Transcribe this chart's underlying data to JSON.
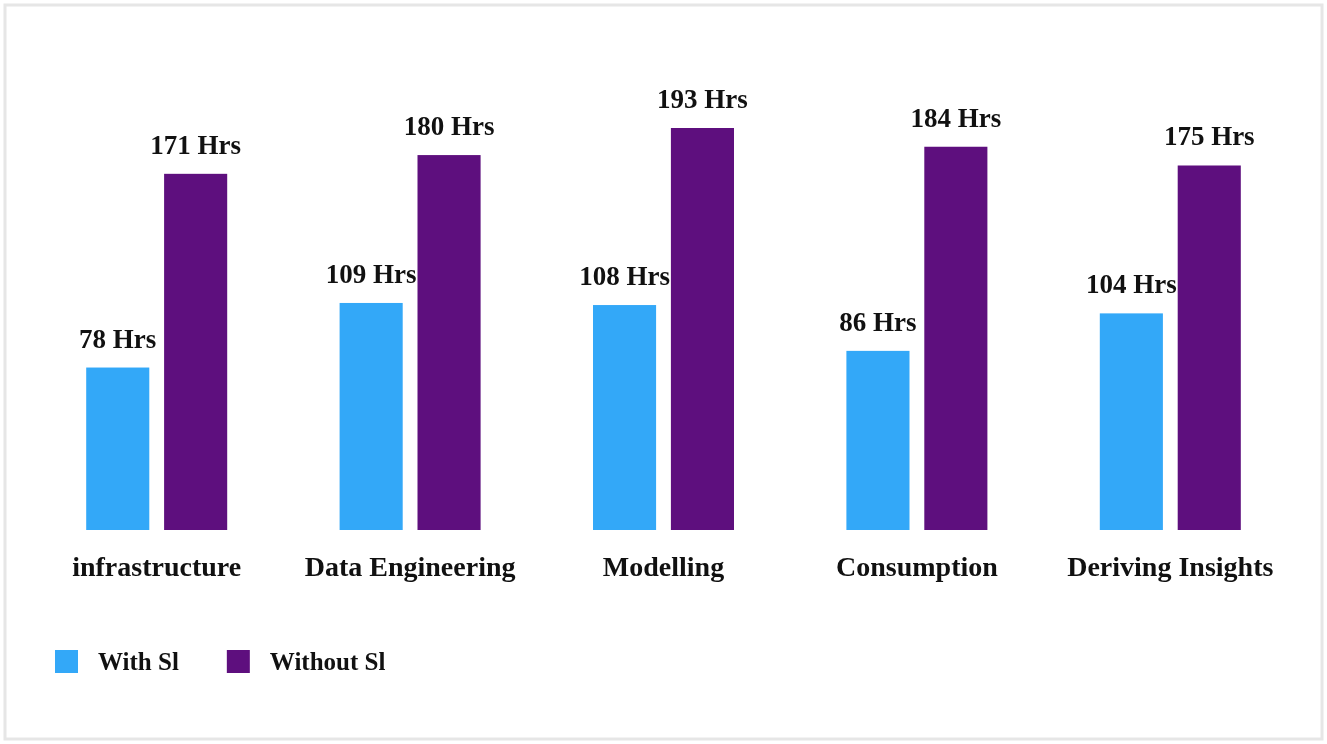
{
  "chart_data": {
    "type": "bar",
    "categories": [
      "infrastructure",
      "Data Engineering",
      "Modelling",
      "Consumption",
      "Deriving Insights"
    ],
    "series": [
      {
        "name": "With Sl",
        "color": "#33a8f8",
        "values": [
          78,
          109,
          108,
          86,
          104
        ],
        "value_labels": [
          "78 Hrs",
          "109 Hrs",
          "108 Hrs",
          "86 Hrs",
          "104 Hrs"
        ]
      },
      {
        "name": "Without Sl",
        "color": "#5e0f7e",
        "values": [
          171,
          180,
          193,
          184,
          175
        ],
        "value_labels": [
          "171 Hrs",
          "180 Hrs",
          "193 Hrs",
          "184 Hrs",
          "175 Hrs"
        ]
      }
    ],
    "legend": "bottom left",
    "grid": false
  }
}
